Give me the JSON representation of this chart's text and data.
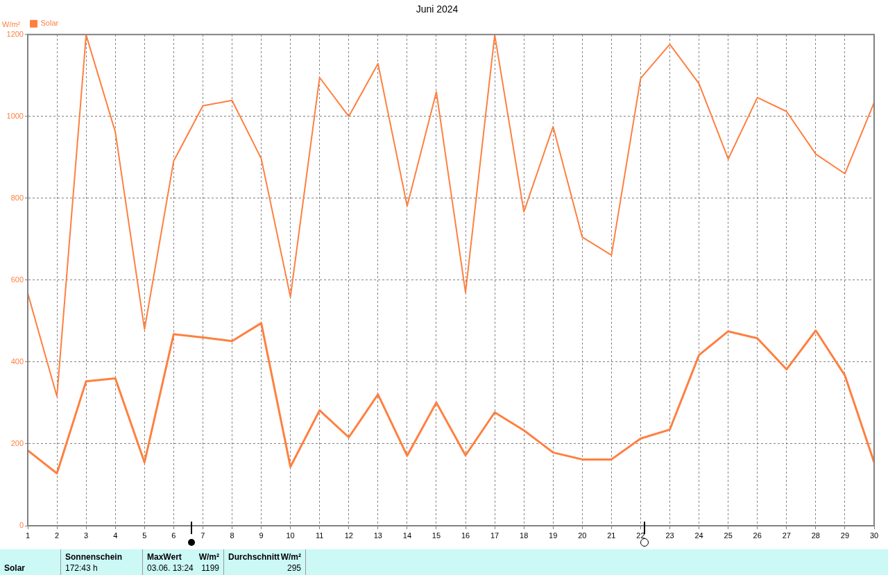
{
  "chart_data": {
    "type": "line",
    "title": "Juni 2024",
    "ylabel": "W/m²",
    "x": [
      1,
      2,
      3,
      4,
      5,
      6,
      7,
      8,
      9,
      10,
      11,
      12,
      13,
      14,
      15,
      16,
      17,
      18,
      19,
      20,
      21,
      22,
      23,
      24,
      25,
      26,
      27,
      28,
      29,
      30
    ],
    "series": [
      {
        "name": "Solar",
        "color": "#ff7f3f",
        "values": [
          568,
          316,
          1199,
          962,
          480,
          891,
          1026,
          1039,
          897,
          559,
          1095,
          1000,
          1129,
          781,
          1060,
          570,
          1199,
          767,
          975,
          705,
          661,
          1093,
          1176,
          1080,
          896,
          1046,
          1012,
          908,
          860,
          1034
        ]
      },
      {
        "color": "#ff7f3f",
        "values": [
          184,
          128,
          353,
          360,
          155,
          468,
          460,
          451,
          495,
          144,
          282,
          216,
          321,
          171,
          301,
          172,
          277,
          233,
          179,
          162,
          162,
          213,
          235,
          417,
          475,
          458,
          382,
          477,
          367,
          155
        ]
      }
    ],
    "xlim": [
      1,
      30
    ],
    "xticks": [
      1,
      2,
      3,
      4,
      5,
      6,
      7,
      8,
      9,
      10,
      11,
      12,
      13,
      14,
      15,
      16,
      17,
      18,
      19,
      20,
      21,
      22,
      23,
      24,
      25,
      26,
      27,
      28,
      29,
      30
    ],
    "ylim": [
      0,
      1200
    ],
    "yticks": [
      0,
      200,
      400,
      600,
      800,
      1000,
      1200
    ],
    "grid": true,
    "legend": "top left",
    "annotations": [
      "Solar",
      "Sonnenschein",
      "172:43 h",
      "MaxWert",
      "W/m²",
      "03.06.  13:24",
      "1199",
      "Durchschnitt",
      "W/m²",
      "295"
    ]
  }
}
